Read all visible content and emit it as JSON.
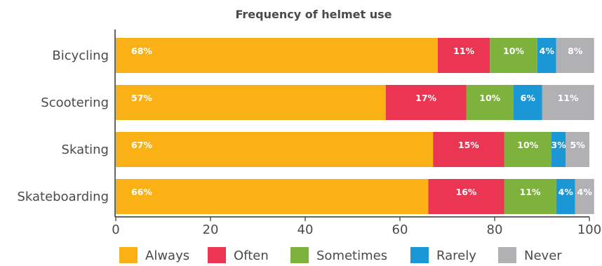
{
  "chart_data": {
    "type": "bar",
    "orientation": "horizontal",
    "stacked": true,
    "title": "Frequency of helmet use",
    "categories": [
      "Bicycling",
      "Scootering",
      "Skating",
      "Skateboarding"
    ],
    "series": [
      {
        "name": "Always",
        "color": "#f9b115",
        "values": [
          68,
          57,
          67,
          66
        ],
        "labels": [
          "68%",
          "57%",
          "67%",
          "66%"
        ]
      },
      {
        "name": "Often",
        "color": "#ea3553",
        "values": [
          11,
          17,
          15,
          16
        ],
        "labels": [
          "11%",
          "17%",
          "15%",
          "16%"
        ]
      },
      {
        "name": "Sometimes",
        "color": "#7db23c",
        "values": [
          10,
          10,
          10,
          11
        ],
        "labels": [
          "10%",
          "10%",
          "10%",
          "11%"
        ]
      },
      {
        "name": "Rarely",
        "color": "#1b97d6",
        "values": [
          4,
          6,
          3,
          4
        ],
        "labels": [
          "4%",
          "6%",
          "3%",
          "4%"
        ]
      },
      {
        "name": "Never",
        "color": "#b1b1b3",
        "values": [
          8,
          11,
          5,
          4
        ],
        "labels": [
          "8%",
          "11%",
          "5%",
          "4%"
        ]
      }
    ],
    "xlim": [
      0,
      100
    ],
    "xticks": [
      "0",
      "20",
      "40",
      "60",
      "80",
      "100"
    ],
    "xlabel": "",
    "ylabel": "",
    "grid": false,
    "legend": "bottom"
  }
}
